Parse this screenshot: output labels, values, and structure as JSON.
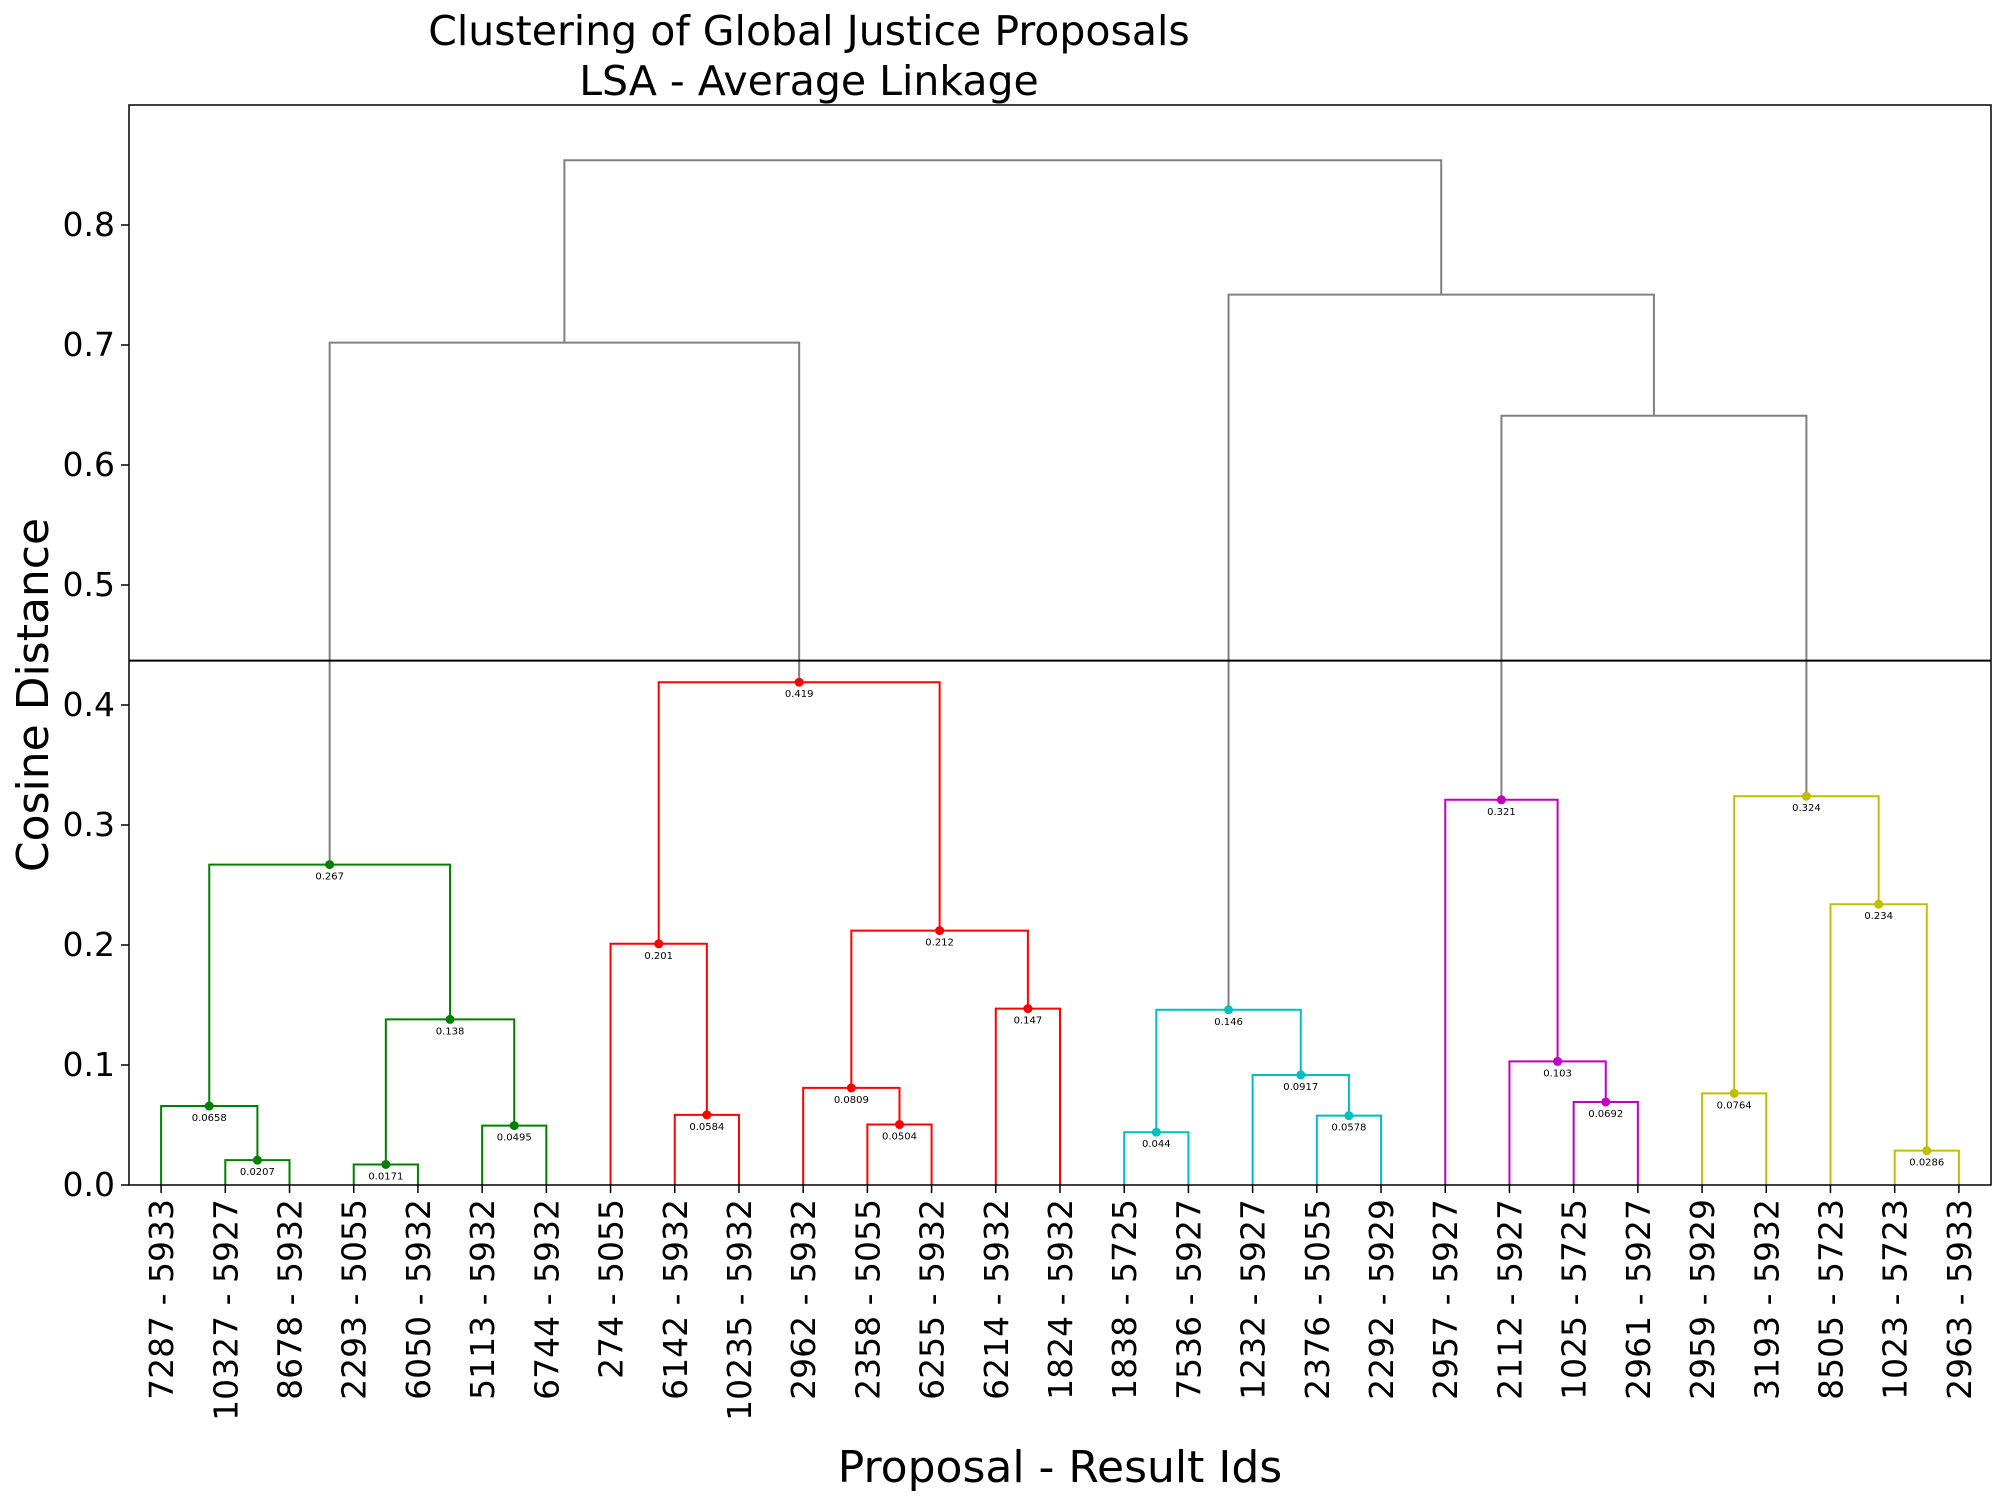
{
  "chart_data": {
    "type": "dendrogram",
    "title": "Clustering of Global Justice Proposals",
    "subtitle": "LSA - Average Linkage",
    "xlabel": "Proposal - Result Ids",
    "ylabel": "Cosine Distance",
    "ylim": [
      0,
      0.9
    ],
    "yticks": [
      "0.0",
      "0.1",
      "0.2",
      "0.3",
      "0.4",
      "0.5",
      "0.6",
      "0.7",
      "0.8"
    ],
    "cut_threshold": 0.437,
    "grid": false,
    "leaves": [
      "7287 - 5933",
      "10327 - 5927",
      "8678 - 5932",
      "2293 - 5055",
      "6050 - 5932",
      "5113 - 5932",
      "6744 - 5932",
      "274 - 5055",
      "6142 - 5932",
      "10235 - 5932",
      "2962 - 5932",
      "2358 - 5055",
      "6255 - 5932",
      "6214 - 5932",
      "1824 - 5932",
      "1838 - 5725",
      "7536 - 5927",
      "1232 - 5927",
      "2376 - 5055",
      "2292 - 5929",
      "2957 - 5927",
      "2112 - 5927",
      "1025 - 5725",
      "2961 - 5927",
      "2959 - 5929",
      "3193 - 5932",
      "8505 - 5723",
      "1023 - 5723",
      "2963 - 5933"
    ],
    "colors": {
      "green": "#008000",
      "red": "#ff0000",
      "cyan": "#00bfbf",
      "magenta": "#bf00bf",
      "yellow": "#bfbf00",
      "grey": "#808080"
    },
    "merges": [
      {
        "a": 1,
        "b": 2,
        "h": 0.0207,
        "label": "0.0207",
        "color": "green"
      },
      {
        "a": 0,
        "b": "n0",
        "h": 0.0658,
        "label": "0.0658",
        "color": "green"
      },
      {
        "a": 3,
        "b": 4,
        "h": 0.0171,
        "label": "0.0171",
        "color": "green"
      },
      {
        "a": 5,
        "b": 6,
        "h": 0.0495,
        "label": "0.0495",
        "color": "green"
      },
      {
        "a": "n2",
        "b": "n3",
        "h": 0.138,
        "label": "0.138",
        "color": "green"
      },
      {
        "a": "n1",
        "b": "n4",
        "h": 0.267,
        "label": "0.267",
        "color": "green"
      },
      {
        "a": 8,
        "b": 9,
        "h": 0.0584,
        "label": "0.0584",
        "color": "red"
      },
      {
        "a": 7,
        "b": "n6",
        "h": 0.201,
        "label": "0.201",
        "color": "red"
      },
      {
        "a": 11,
        "b": 12,
        "h": 0.0504,
        "label": "0.0504",
        "color": "red"
      },
      {
        "a": 10,
        "b": "n8",
        "h": 0.0809,
        "label": "0.0809",
        "color": "red"
      },
      {
        "a": 13,
        "b": 14,
        "h": 0.147,
        "label": "0.147",
        "color": "red"
      },
      {
        "a": "n9",
        "b": "n10",
        "h": 0.212,
        "label": "0.212",
        "color": "red"
      },
      {
        "a": "n7",
        "b": "n11",
        "h": 0.419,
        "label": "0.419",
        "color": "red"
      },
      {
        "a": 15,
        "b": 16,
        "h": 0.044,
        "label": "0.044",
        "color": "cyan"
      },
      {
        "a": 18,
        "b": 19,
        "h": 0.0578,
        "label": "0.0578",
        "color": "cyan"
      },
      {
        "a": 17,
        "b": "n14",
        "h": 0.0917,
        "label": "0.0917",
        "color": "cyan"
      },
      {
        "a": "n13",
        "b": "n15",
        "h": 0.146,
        "label": "0.146",
        "color": "cyan"
      },
      {
        "a": 22,
        "b": 23,
        "h": 0.0692,
        "label": "0.0692",
        "color": "magenta"
      },
      {
        "a": 21,
        "b": "n17",
        "h": 0.103,
        "label": "0.103",
        "color": "magenta"
      },
      {
        "a": 20,
        "b": "n18",
        "h": 0.321,
        "label": "0.321",
        "color": "magenta"
      },
      {
        "a": 24,
        "b": 25,
        "h": 0.0764,
        "label": "0.0764",
        "color": "yellow"
      },
      {
        "a": 27,
        "b": 28,
        "h": 0.0286,
        "label": "0.0286",
        "color": "yellow"
      },
      {
        "a": 26,
        "b": "n21",
        "h": 0.234,
        "label": "0.234",
        "color": "yellow"
      },
      {
        "a": "n20",
        "b": "n22",
        "h": 0.324,
        "label": "0.324",
        "color": "yellow"
      },
      {
        "a": "n5",
        "b": "n12",
        "h": 0.702,
        "label": "",
        "color": "grey"
      },
      {
        "a": "n19",
        "b": "n23",
        "h": 0.641,
        "label": "",
        "color": "grey"
      },
      {
        "a": "n16",
        "b": "n25",
        "h": 0.742,
        "label": "",
        "color": "grey"
      },
      {
        "a": "n24",
        "b": "n26",
        "h": 0.854,
        "label": "",
        "color": "grey"
      }
    ]
  }
}
